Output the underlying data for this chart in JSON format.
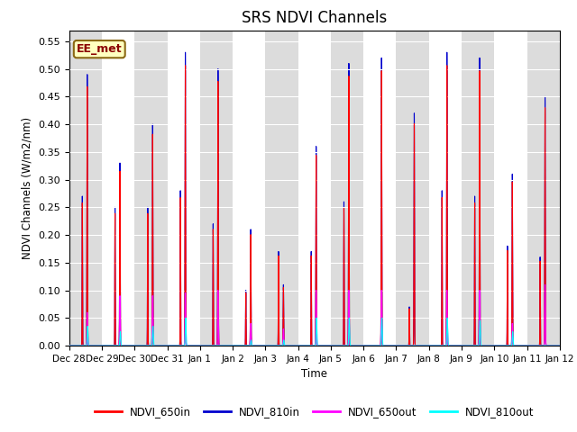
{
  "title": "SRS NDVI Channels",
  "ylabel": "NDVI Channels (W/m2/nm)",
  "xlabel": "Time",
  "annotation_text": "EE_met",
  "annotation_color": "#8B0000",
  "annotation_bg": "#FFFFC0",
  "annotation_border": "#8B6914",
  "ylim": [
    0.0,
    0.57
  ],
  "yticks": [
    0.0,
    0.05,
    0.1,
    0.15,
    0.2,
    0.25,
    0.3,
    0.35,
    0.4,
    0.45,
    0.5,
    0.55
  ],
  "xtick_labels": [
    "Dec 28",
    "Dec 29",
    "Dec 30",
    "Dec 31",
    "Jan 1",
    "Jan 2",
    "Jan 3",
    "Jan 4",
    "Jan 5",
    "Jan 6",
    "Jan 7",
    "Jan 8",
    "Jan 9",
    "Jan 10",
    "Jan 11",
    "Jan 12"
  ],
  "legend_labels": [
    "NDVI_650in",
    "NDVI_810in",
    "NDVI_650out",
    "NDVI_810out"
  ],
  "line_colors": [
    "#FF0000",
    "#0000CD",
    "#FF00FF",
    "#00FFFF"
  ],
  "bg_color": "#DCDCDC",
  "linewidth": 0.8,
  "title_fontsize": 12
}
